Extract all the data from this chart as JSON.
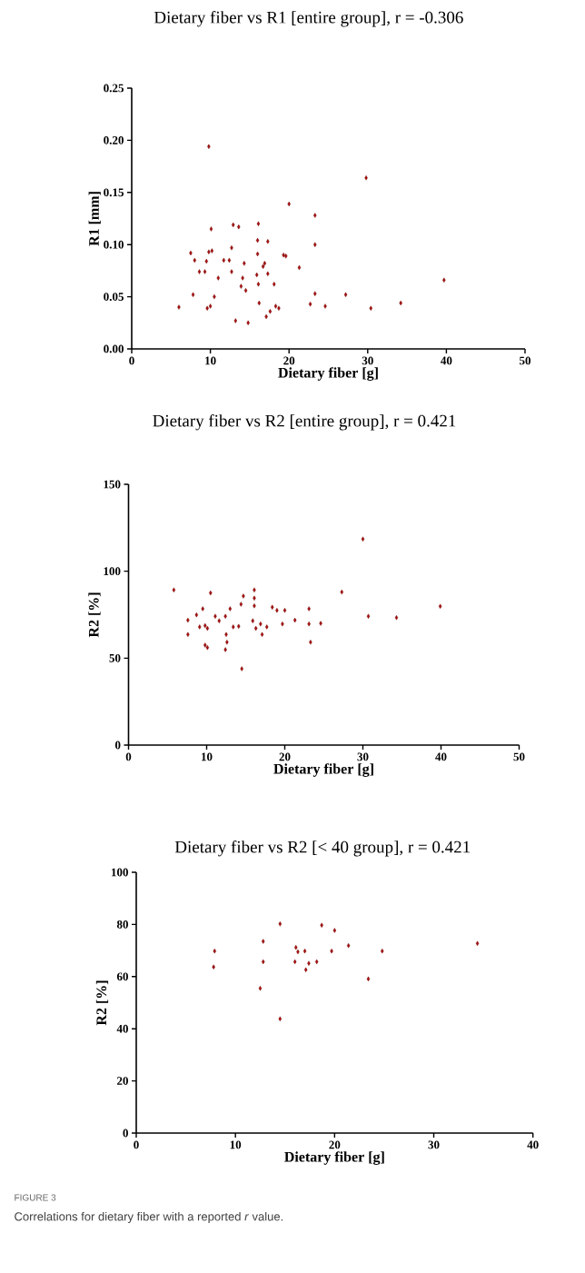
{
  "chart_data": [
    {
      "type": "scatter",
      "title": "Dietary fiber vs R1 [entire group], r = -0.306",
      "xlabel": "Dietary fiber  [g]",
      "ylabel": "R1 [mm]",
      "color": "#a50d0d",
      "marker": "diamond",
      "xlim": [
        0,
        50
      ],
      "xticks": [
        0,
        10,
        20,
        30,
        40,
        50
      ],
      "ylim": [
        0,
        0.25
      ],
      "yticks": [
        {
          "value": 0,
          "label": "0.00"
        },
        {
          "value": 0.05,
          "label": "0.05"
        },
        {
          "value": 0.1,
          "label": "0.10"
        },
        {
          "value": 0.15,
          "label": "0.15"
        },
        {
          "value": 0.2,
          "label": "0.20"
        },
        {
          "value": 0.25,
          "label": "0.25"
        }
      ],
      "x": [
        9.8,
        6.0,
        7.5,
        8.0,
        7.8,
        8.6,
        9.3,
        9.5,
        9.8,
        10.2,
        10.1,
        9.6,
        10.0,
        10.5,
        11.0,
        11.7,
        12.4,
        12.7,
        12.7,
        12.9,
        13.6,
        13.2,
        14.1,
        13.9,
        14.3,
        14.5,
        14.8,
        16.1,
        16.0,
        16.0,
        15.9,
        16.1,
        16.2,
        16.7,
        16.9,
        17.3,
        17.3,
        18.1,
        17.1,
        17.6,
        18.3,
        18.7,
        19.3,
        19.6,
        20.0,
        21.3,
        22.7,
        23.3,
        23.3,
        23.3,
        24.6,
        27.2,
        29.8,
        30.4,
        34.2,
        39.7
      ],
      "values": [
        0.194,
        0.04,
        0.092,
        0.085,
        0.052,
        0.074,
        0.074,
        0.084,
        0.093,
        0.094,
        0.115,
        0.039,
        0.041,
        0.05,
        0.068,
        0.085,
        0.085,
        0.097,
        0.074,
        0.119,
        0.117,
        0.027,
        0.068,
        0.06,
        0.082,
        0.056,
        0.025,
        0.12,
        0.104,
        0.091,
        0.071,
        0.062,
        0.044,
        0.079,
        0.082,
        0.103,
        0.072,
        0.062,
        0.031,
        0.036,
        0.041,
        0.039,
        0.09,
        0.089,
        0.139,
        0.078,
        0.043,
        0.053,
        0.128,
        0.1,
        0.041,
        0.052,
        0.164,
        0.039,
        0.044,
        0.066
      ]
    },
    {
      "type": "scatter",
      "title": "Dietary fiber vs R2 [entire group], r = 0.421",
      "xlabel": "Dietary fiber  [g]",
      "ylabel": "R2 [%]",
      "color": "#a50d0d",
      "marker": "diamond",
      "xlim": [
        0,
        50
      ],
      "xticks": [
        0,
        10,
        20,
        30,
        40,
        50
      ],
      "ylim": [
        0,
        150
      ],
      "yticks": [
        0,
        50,
        100,
        150
      ],
      "x": [
        5.8,
        10.5,
        7.6,
        7.6,
        8.7,
        9.5,
        9.1,
        9.8,
        10.1,
        9.8,
        10.1,
        11.1,
        11.6,
        12.4,
        13.0,
        12.5,
        12.6,
        12.4,
        13.4,
        14.1,
        14.4,
        14.7,
        14.5,
        16.1,
        16.1,
        16.1,
        15.9,
        16.3,
        16.9,
        17.1,
        17.7,
        18.4,
        19.0,
        19.7,
        20.0,
        21.3,
        23.1,
        23.1,
        23.3,
        24.6,
        27.3,
        30.0,
        30.7,
        34.3,
        39.9
      ],
      "values": [
        89.2,
        87.5,
        71.8,
        63.6,
        74.9,
        78.4,
        68.0,
        68.7,
        67.1,
        57.5,
        56.1,
        74.1,
        71.5,
        74.1,
        78.4,
        63.6,
        59.2,
        54.9,
        68.0,
        68.3,
        81.0,
        85.7,
        43.9,
        89.2,
        84.5,
        80.1,
        71.5,
        67.1,
        69.7,
        63.6,
        68.0,
        79.3,
        77.5,
        69.7,
        77.5,
        71.8,
        78.4,
        69.7,
        59.2,
        70.0,
        88.0,
        118.5,
        74.1,
        73.3,
        79.8
      ]
    },
    {
      "type": "scatter",
      "title": "Dietary fiber vs R2 [< 40 group], r = 0.421",
      "xlabel": "Dietary fiber [g]",
      "ylabel": "R2 [%]",
      "color": "#a50d0d",
      "marker": "diamond",
      "xlim": [
        0,
        40
      ],
      "xticks": [
        0,
        10,
        20,
        30,
        40
      ],
      "ylim": [
        0,
        100
      ],
      "yticks": [
        0,
        20,
        40,
        60,
        80,
        100
      ],
      "x": [
        7.9,
        7.8,
        12.8,
        12.8,
        12.5,
        14.5,
        14.5,
        16.1,
        16.3,
        16.0,
        17.0,
        17.4,
        17.1,
        18.2,
        18.7,
        20.0,
        19.7,
        21.4,
        23.4,
        24.8,
        34.4
      ],
      "values": [
        69.8,
        63.7,
        73.5,
        65.7,
        55.5,
        80.2,
        43.8,
        71.2,
        69.5,
        65.7,
        69.8,
        65.1,
        62.6,
        65.7,
        79.7,
        77.7,
        69.8,
        71.9,
        59.1,
        69.8,
        72.7
      ],
      "annotations": [
        "FIGURE 3",
        "Correlations for dietary fiber with a reported *r* value."
      ]
    }
  ]
}
